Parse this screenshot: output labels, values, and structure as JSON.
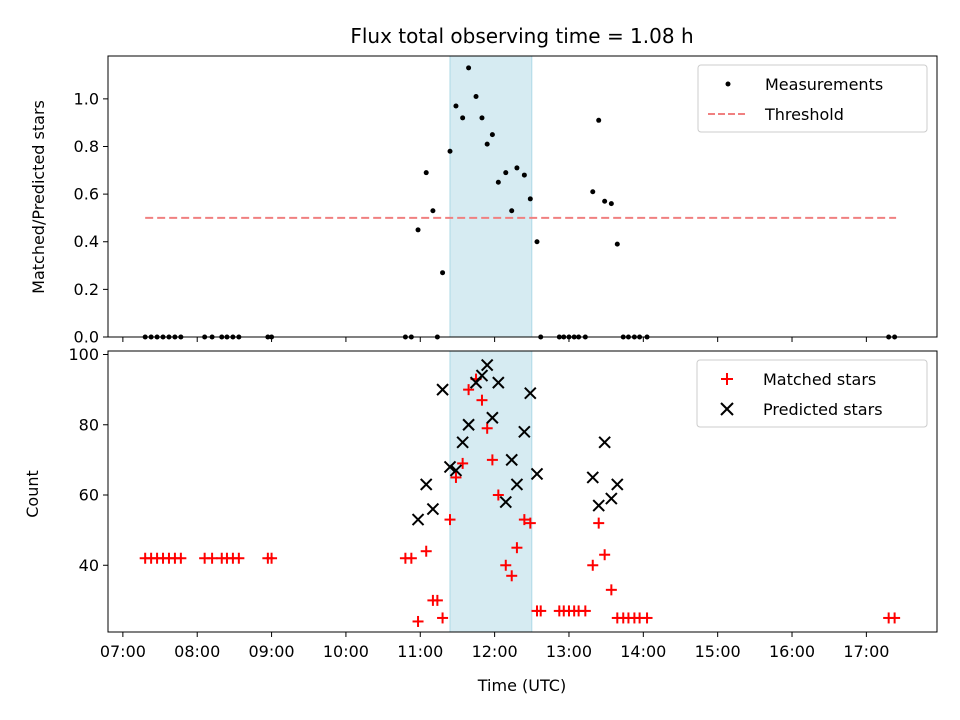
{
  "title": "Flux total observing time = 1.08 h",
  "chart_data": [
    {
      "type": "scatter",
      "ylabel": "Matched/Predicted stars",
      "xlim": [
        6.8,
        17.95
      ],
      "ylim": [
        0,
        1.18
      ],
      "yticks": [
        0.0,
        0.2,
        0.4,
        0.6,
        0.8,
        1.0
      ],
      "ytick_labels": [
        "0.0",
        "0.2",
        "0.4",
        "0.6",
        "0.8",
        "1.0"
      ],
      "legend_position": "top-right",
      "highlight_span": [
        11.4,
        12.5
      ],
      "threshold": {
        "name": "Threshold",
        "value": 0.5,
        "x_range": [
          7.3,
          17.4
        ],
        "color": "#f08080"
      },
      "series": [
        {
          "name": "Measurements",
          "color": "#000000",
          "x": [
            7.3,
            7.38,
            7.46,
            7.54,
            7.62,
            7.7,
            7.78,
            8.1,
            8.2,
            8.33,
            8.4,
            8.48,
            8.56,
            8.95,
            9.0,
            10.8,
            10.88,
            10.97,
            11.08,
            11.17,
            11.23,
            11.3,
            11.4,
            11.48,
            11.57,
            11.65,
            11.75,
            11.83,
            11.9,
            11.97,
            12.05,
            12.15,
            12.23,
            12.3,
            12.4,
            12.48,
            12.57,
            12.62,
            12.87,
            12.93,
            13.0,
            13.07,
            13.13,
            13.22,
            13.32,
            13.4,
            13.48,
            13.57,
            13.65,
            13.73,
            13.8,
            13.88,
            13.95,
            14.05,
            17.3,
            17.38
          ],
          "y": [
            0,
            0,
            0,
            0,
            0,
            0,
            0,
            0,
            0,
            0,
            0,
            0,
            0,
            0,
            0,
            0,
            0,
            0.45,
            0.69,
            0.53,
            0,
            0.27,
            0.78,
            0.97,
            0.92,
            1.13,
            1.01,
            0.92,
            0.81,
            0.85,
            0.65,
            0.69,
            0.53,
            0.71,
            0.68,
            0.58,
            0.4,
            0,
            0,
            0,
            0,
            0,
            0,
            0,
            0.61,
            0.91,
            0.57,
            0.56,
            0.39,
            0,
            0,
            0,
            0,
            0,
            0,
            0
          ]
        }
      ]
    },
    {
      "type": "scatter",
      "xlabel": "Time (UTC)",
      "ylabel": "Count",
      "xlim": [
        6.8,
        17.95
      ],
      "ylim": [
        21,
        101
      ],
      "yticks": [
        40,
        60,
        80,
        100
      ],
      "ytick_labels": [
        "40",
        "60",
        "80",
        "100"
      ],
      "xticks": [
        7,
        8,
        9,
        10,
        11,
        12,
        13,
        14,
        15,
        16,
        17
      ],
      "xtick_labels": [
        "07:00",
        "08:00",
        "09:00",
        "10:00",
        "11:00",
        "12:00",
        "13:00",
        "14:00",
        "15:00",
        "16:00",
        "17:00"
      ],
      "legend_position": "top-right",
      "highlight_span": [
        11.4,
        12.5
      ],
      "series": [
        {
          "name": "Matched stars",
          "color": "#ff0000",
          "marker": "plus",
          "x": [
            7.3,
            7.38,
            7.46,
            7.54,
            7.62,
            7.7,
            7.78,
            8.1,
            8.2,
            8.33,
            8.4,
            8.48,
            8.56,
            8.95,
            9.0,
            10.8,
            10.88,
            10.97,
            11.08,
            11.17,
            11.23,
            11.3,
            11.4,
            11.48,
            11.57,
            11.65,
            11.75,
            11.83,
            11.9,
            11.97,
            12.05,
            12.15,
            12.23,
            12.3,
            12.4,
            12.48,
            12.57,
            12.62,
            12.87,
            12.93,
            13.0,
            13.07,
            13.13,
            13.22,
            13.32,
            13.4,
            13.48,
            13.57,
            13.65,
            13.73,
            13.8,
            13.88,
            13.95,
            14.05,
            17.3,
            17.38
          ],
          "y": [
            42,
            42,
            42,
            42,
            42,
            42,
            42,
            42,
            42,
            42,
            42,
            42,
            42,
            42,
            42,
            42,
            42,
            24,
            44,
            30,
            30,
            25,
            53,
            65,
            69,
            90,
            93,
            87,
            79,
            70,
            60,
            40,
            37,
            45,
            53,
            52,
            27,
            27,
            27,
            27,
            27,
            27,
            27,
            27,
            40,
            52,
            43,
            33,
            25,
            25,
            25,
            25,
            25,
            25,
            25,
            25
          ]
        },
        {
          "name": "Predicted stars",
          "color": "#000000",
          "marker": "x",
          "x": [
            10.97,
            11.08,
            11.17,
            11.3,
            11.4,
            11.48,
            11.57,
            11.65,
            11.75,
            11.83,
            11.9,
            11.97,
            12.05,
            12.15,
            12.23,
            12.3,
            12.4,
            12.48,
            12.57,
            13.32,
            13.4,
            13.48,
            13.57,
            13.65
          ],
          "y": [
            53,
            63,
            56,
            90,
            68,
            67,
            75,
            80,
            92,
            94,
            97,
            82,
            92,
            58,
            70,
            63,
            78,
            89,
            66,
            65,
            57,
            75,
            59,
            63
          ]
        }
      ]
    }
  ]
}
